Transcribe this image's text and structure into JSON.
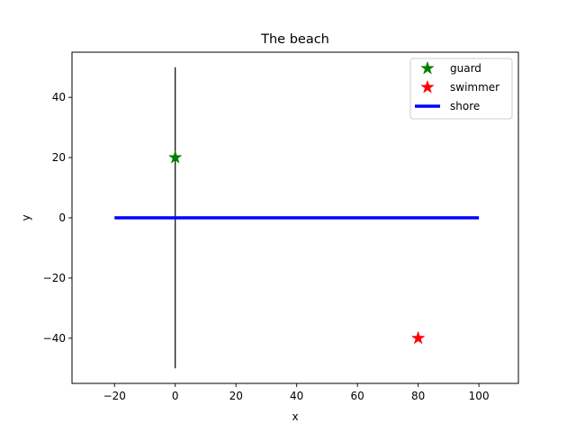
{
  "chart_data": {
    "type": "scatter",
    "title": "The beach",
    "xlabel": "x",
    "ylabel": "y",
    "xlim": [
      -34,
      113
    ],
    "ylim": [
      -55,
      55
    ],
    "xticks": [
      -20,
      0,
      20,
      40,
      60,
      80,
      100
    ],
    "yticks": [
      -40,
      -20,
      0,
      20,
      40
    ],
    "grid": false,
    "legend_position": "upper right",
    "series": [
      {
        "name": "guard",
        "kind": "marker",
        "marker": "star",
        "color": "#008000",
        "points": [
          {
            "x": 0,
            "y": 20
          }
        ]
      },
      {
        "name": "swimmer",
        "kind": "marker",
        "marker": "star",
        "color": "#ff0000",
        "points": [
          {
            "x": 80,
            "y": -40
          }
        ]
      },
      {
        "name": "shore",
        "kind": "line",
        "color": "#0000ff",
        "points": [
          {
            "x": -20,
            "y": 0
          },
          {
            "x": 100,
            "y": 0
          }
        ]
      }
    ],
    "reference_lines": [
      {
        "color": "#000000",
        "points": [
          {
            "x": 0,
            "y": -50
          },
          {
            "x": 0,
            "y": 50
          }
        ]
      }
    ]
  }
}
